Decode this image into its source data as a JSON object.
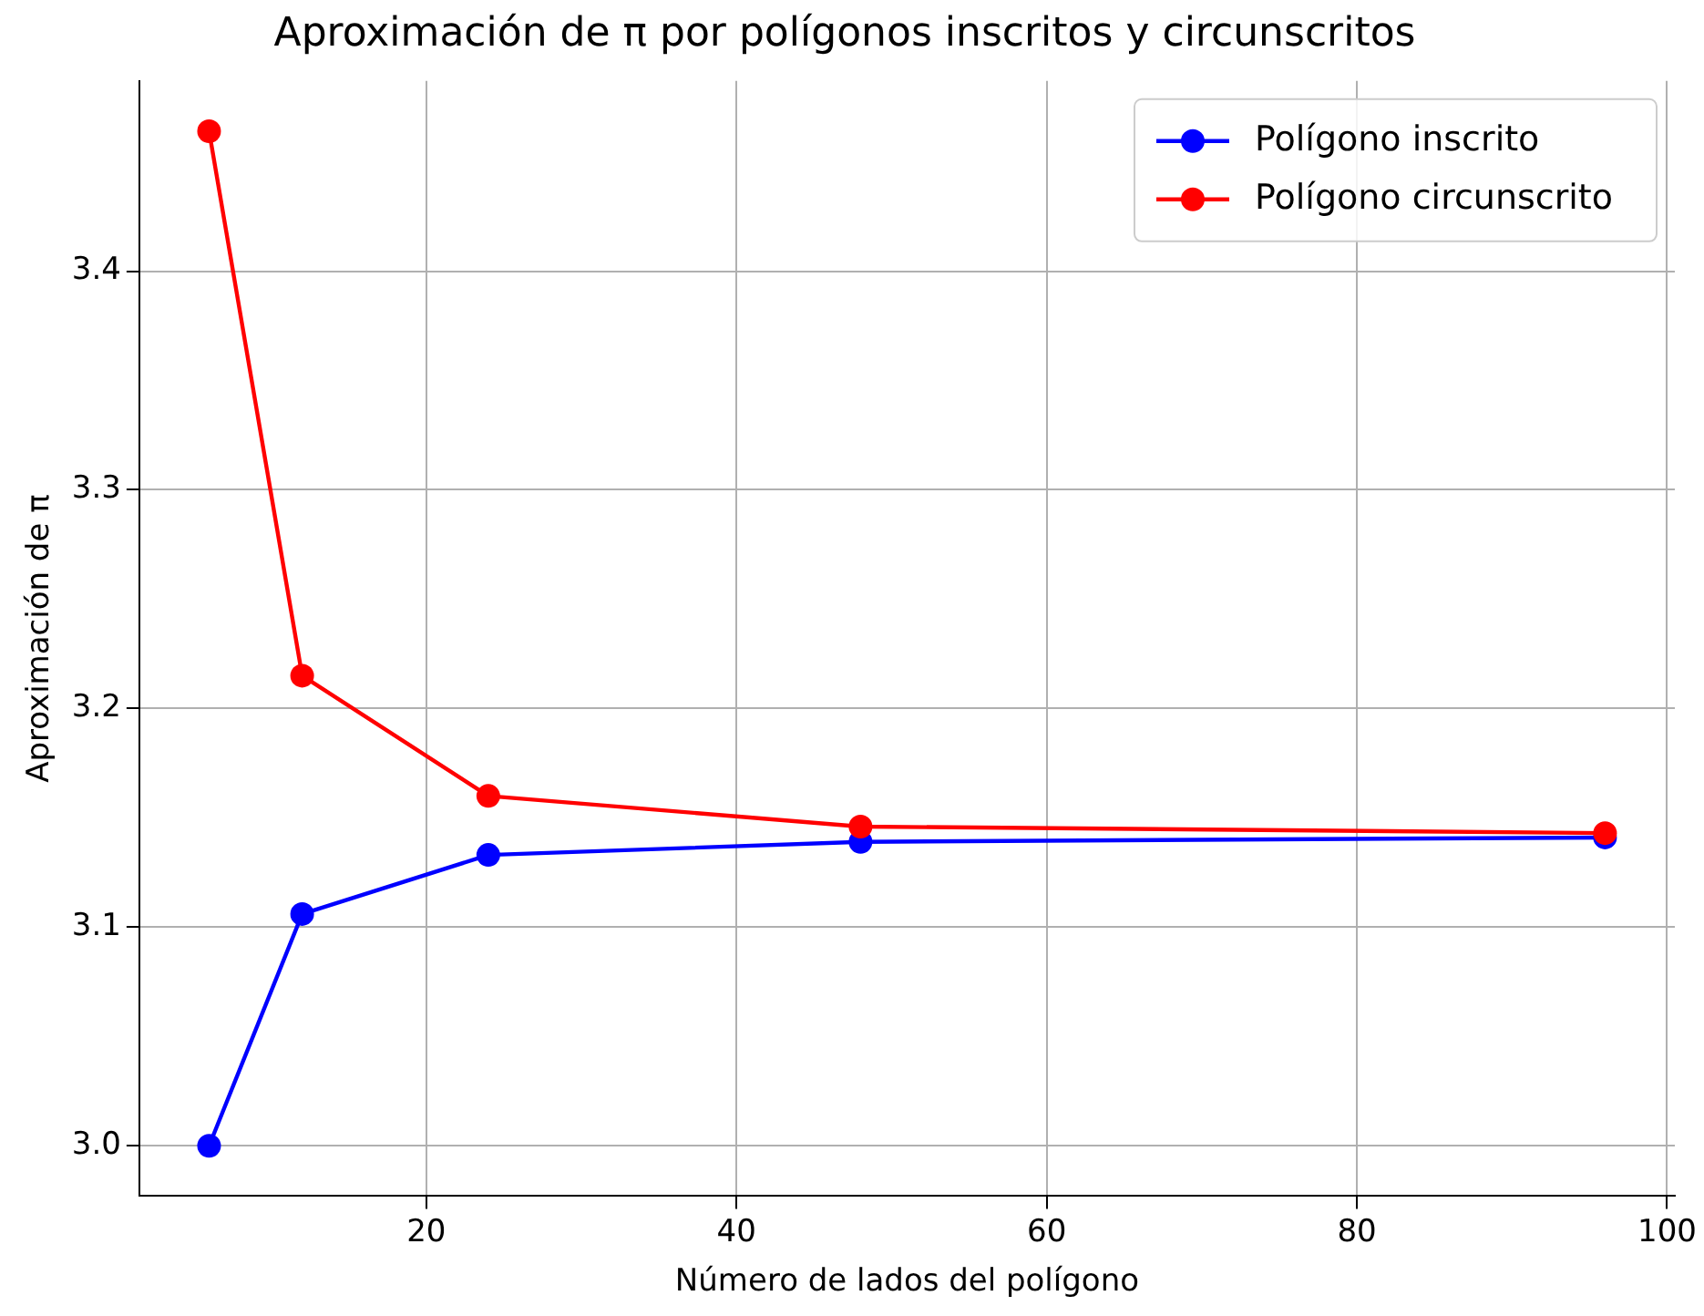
{
  "chart_data": {
    "type": "line",
    "title": "Aproximación de π por polígonos inscritos y circunscritos",
    "xlabel": "Número de lados del polígono",
    "ylabel": "Aproximación de π",
    "x": [
      6,
      12,
      24,
      48,
      96
    ],
    "series": [
      {
        "name": "Polígono inscrito",
        "color": "#0000ff",
        "values": [
          3.0,
          3.106,
          3.133,
          3.139,
          3.141
        ]
      },
      {
        "name": "Polígono circunscrito",
        "color": "#ff0000",
        "values": [
          3.464,
          3.215,
          3.16,
          3.146,
          3.143
        ]
      }
    ],
    "xlim": [
      1.5,
      100.5
    ],
    "xticks": [
      20,
      40,
      60,
      80,
      100
    ],
    "ylim": [
      2.977,
      3.487
    ],
    "yticks": [
      {
        "value": 3.0,
        "label": "3.0"
      },
      {
        "value": 3.1,
        "label": "3.1"
      },
      {
        "value": 3.2,
        "label": "3.2"
      },
      {
        "value": 3.3,
        "label": "3.3"
      },
      {
        "value": 3.4,
        "label": "3.4"
      }
    ],
    "grid": true,
    "legend": "top right",
    "marker": "circle",
    "line_style": "solid"
  }
}
